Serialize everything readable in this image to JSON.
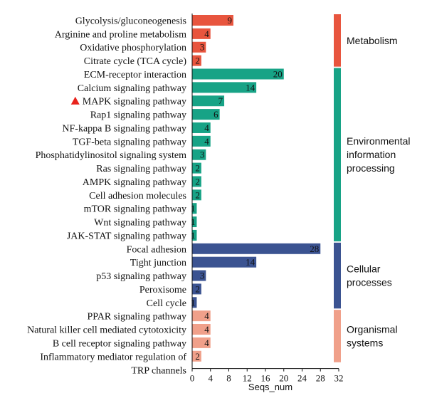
{
  "chart_data": {
    "type": "bar",
    "orientation": "horizontal",
    "xlabel": "Seqs_num",
    "xlim": [
      0,
      32
    ],
    "xticks": [
      0,
      4,
      8,
      12,
      16,
      20,
      24,
      28,
      32
    ],
    "grid": false,
    "colors": {
      "Metabolism": "#e8553e",
      "Environmental information processing": "#17a386",
      "Cellular processes": "#3b5391",
      "Organismal systems": "#f0a08a"
    },
    "highlight": {
      "category": "MAPK signaling pathway",
      "marker": "triangle-icon",
      "color": "#e8231c"
    },
    "groups": [
      {
        "name": "Metabolism",
        "label_lines": [
          "Metabolism"
        ],
        "color": "#e8553e",
        "items": [
          {
            "category": "Glycolysis/gluconeogenesis",
            "value": 9
          },
          {
            "category": "Arginine and proline metabolism",
            "value": 4
          },
          {
            "category": "Oxidative phosphorylation",
            "value": 3
          },
          {
            "category": "Citrate cycle (TCA cycle)",
            "value": 2
          }
        ]
      },
      {
        "name": "Environmental information processing",
        "label_lines": [
          "Environmental",
          "information",
          "processing"
        ],
        "color": "#17a386",
        "items": [
          {
            "category": "ECM-receptor interaction",
            "value": 20
          },
          {
            "category": "Calcium signaling pathway",
            "value": 14
          },
          {
            "category": "MAPK signaling pathway",
            "value": 7
          },
          {
            "category": "Rap1 signaling pathway",
            "value": 6
          },
          {
            "category": "NF-kappa B signaling pathway",
            "value": 4
          },
          {
            "category": "TGF-beta signaling pathway",
            "value": 4
          },
          {
            "category": "Phosphatidylinositol signaling system",
            "value": 3
          },
          {
            "category": "Ras signaling pathway",
            "value": 2
          },
          {
            "category": "AMPK signaling pathway",
            "value": 2
          },
          {
            "category": "Cell adhesion molecules",
            "value": 2
          },
          {
            "category": "mTOR signaling pathway",
            "value": 1
          },
          {
            "category": "Wnt signaling pathway",
            "value": 1
          },
          {
            "category": "JAK-STAT signaling pathway",
            "value": 1
          }
        ]
      },
      {
        "name": "Cellular processes",
        "label_lines": [
          "Cellular",
          "processes"
        ],
        "color": "#3b5391",
        "items": [
          {
            "category": "Focal adhesion",
            "value": 28
          },
          {
            "category": "Tight junction",
            "value": 14
          },
          {
            "category": "p53 signaling pathway",
            "value": 3
          },
          {
            "category": "Peroxisome",
            "value": 2
          },
          {
            "category": "Cell cycle",
            "value": 1
          }
        ]
      },
      {
        "name": "Organismal systems",
        "label_lines": [
          "Organismal",
          "systems"
        ],
        "color": "#f0a08a",
        "items": [
          {
            "category": "PPAR signaling pathway",
            "value": 4
          },
          {
            "category": "Natural killer cell mediated cytotoxicity",
            "value": 4
          },
          {
            "category": "B cell receptor signaling pathway",
            "value": 4
          },
          {
            "category": "Inflammatory mediator regulation of TRP channels",
            "label_lines": [
              "Inflammatory mediator regulation of",
              "TRP channels"
            ],
            "value": 2
          }
        ]
      }
    ]
  }
}
